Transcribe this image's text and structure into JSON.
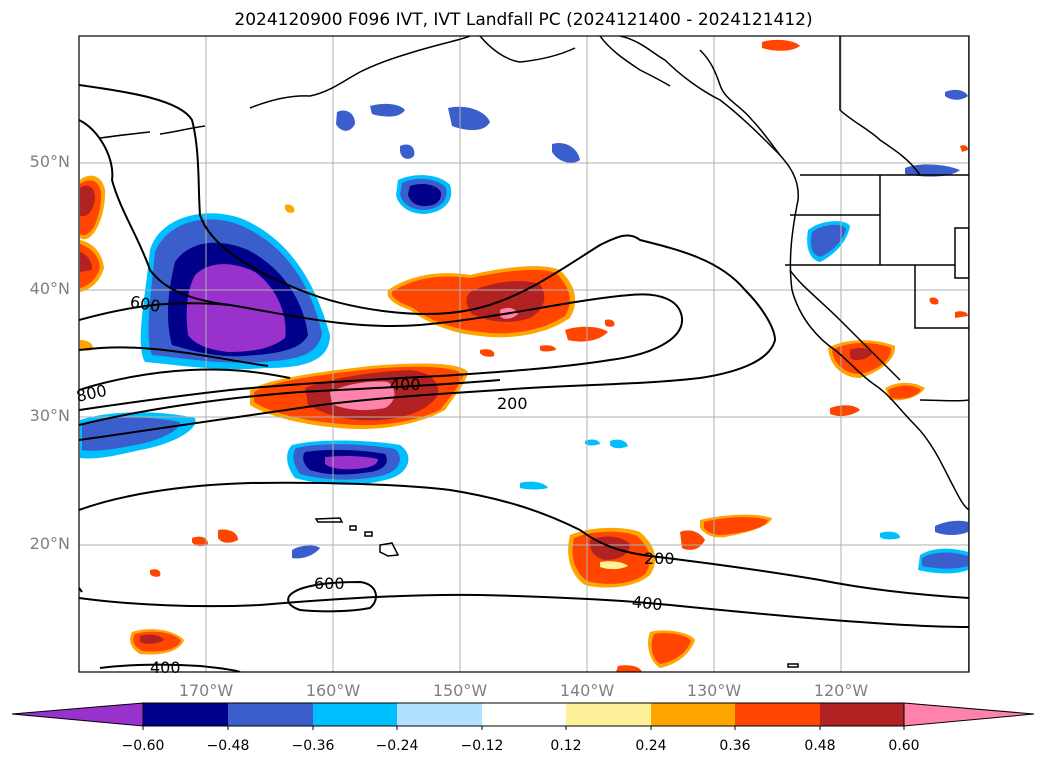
{
  "title": "2024120900 F096 IVT, IVT Landfall PC (2024121400 - 2024121412)",
  "lat_labels": [
    "50°N",
    "40°N",
    "30°N",
    "20°N"
  ],
  "lon_labels": [
    "170°W",
    "160°W",
    "150°W",
    "140°W",
    "130°W",
    "120°W"
  ],
  "contour_labels": [
    "600",
    "800",
    "400",
    "200",
    "200",
    "600",
    "400",
    "400"
  ],
  "colorbar": {
    "ticks": [
      "−0.60",
      "−0.48",
      "−0.36",
      "−0.24",
      "−0.12",
      "0.12",
      "0.24",
      "0.36",
      "0.48",
      "0.60"
    ],
    "colors": [
      "#9932cc",
      "#00008b",
      "#3a5fcd",
      "#00bfff",
      "#b0e2ff",
      "#ffffff",
      "#fff09a",
      "#ffa500",
      "#ff4500",
      "#b22222",
      "#ff82ab"
    ]
  },
  "colors": {
    "contour": "#000000",
    "coastline": "#000000",
    "grid": "#b0b0b0"
  }
}
